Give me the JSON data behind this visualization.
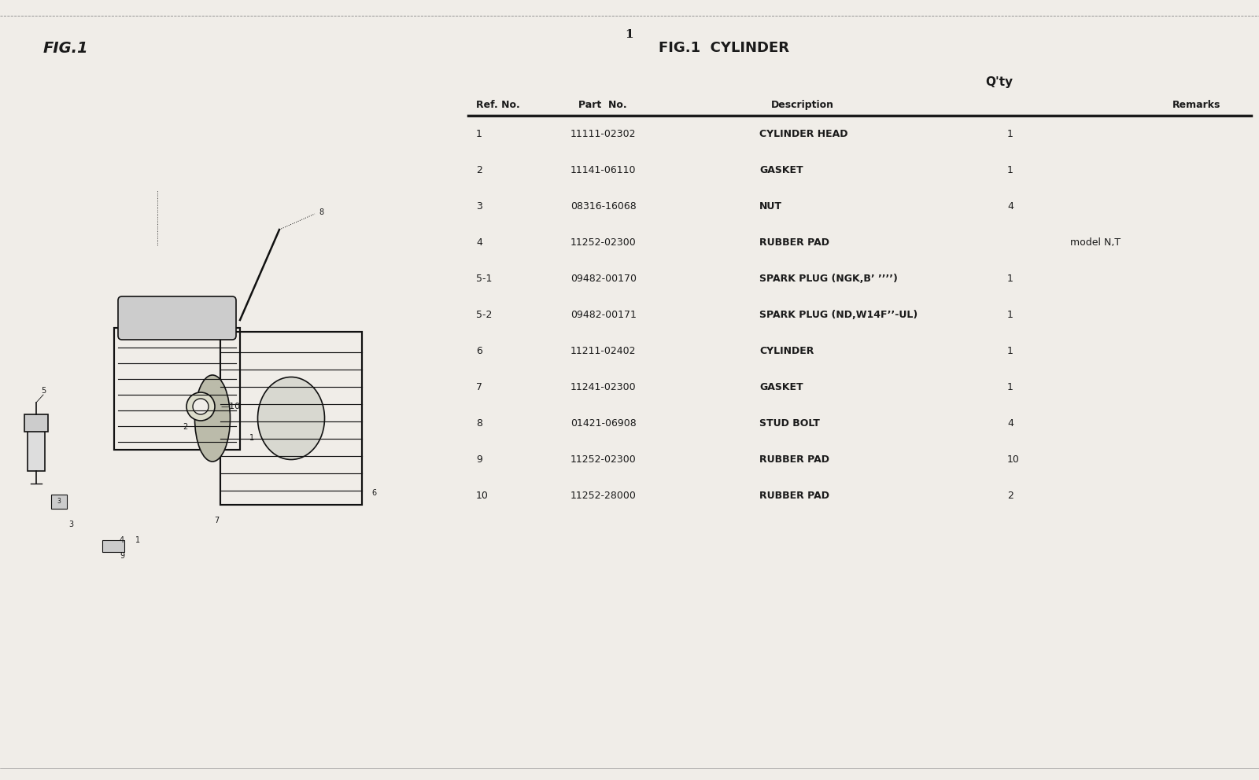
{
  "page_number": "1",
  "fig_label_left": "FIG.1",
  "fig_title": "FIG.1  CYLINDER",
  "qty_header": "Q'ty",
  "columns": [
    "Ref. No.",
    "Part  No.",
    "Description",
    "",
    "Remarks"
  ],
  "rows": [
    {
      "ref": "1",
      "part": "11111-02302",
      "desc": "CYLINDER HEAD",
      "qty": "1",
      "remarks": ""
    },
    {
      "ref": "2",
      "part": "11141-06110",
      "desc": "GASKET",
      "qty": "1",
      "remarks": ""
    },
    {
      "ref": "3",
      "part": "08316-16068",
      "desc": "NUT",
      "qty": "4",
      "remarks": ""
    },
    {
      "ref": "4",
      "part": "11252-02300",
      "desc": "RUBBER PAD",
      "qty": "",
      "remarks": "model N,T"
    },
    {
      "ref": "5-1",
      "part": "09482-00170",
      "desc": "SPARK PLUG (NGK,B’ ’’’’)",
      "qty": "1",
      "remarks": ""
    },
    {
      "ref": "5-2",
      "part": "09482-00171",
      "desc": "SPARK PLUG (ND,W14F’’-UL)",
      "qty": "1",
      "remarks": ""
    },
    {
      "ref": "6",
      "part": "11211-02402",
      "desc": "CYLINDER",
      "qty": "1",
      "remarks": ""
    },
    {
      "ref": "7",
      "part": "11241-02300",
      "desc": "GASKET",
      "qty": "1",
      "remarks": ""
    },
    {
      "ref": "8",
      "part": "01421-06908",
      "desc": "STUD BOLT",
      "qty": "4",
      "remarks": ""
    },
    {
      "ref": "9",
      "part": "11252-02300",
      "desc": "RUBBER PAD",
      "qty": "10",
      "remarks": ""
    },
    {
      "ref": "10",
      "part": "11252-28000",
      "desc": "RUBBER PAD",
      "qty": "2",
      "remarks": ""
    }
  ],
  "background_color": "#f0ede8",
  "text_color": "#1a1a1a",
  "border_color": "#999999"
}
